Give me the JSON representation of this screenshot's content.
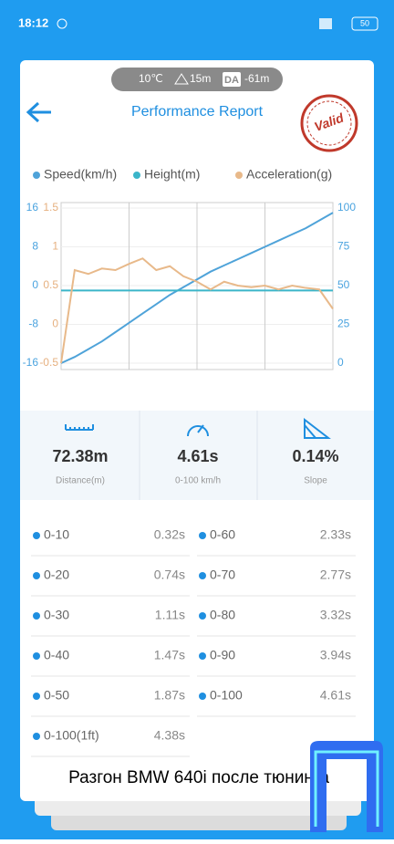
{
  "status_bar": {
    "time": "18:12",
    "battery": "50"
  },
  "conditions": {
    "temperature": "10℃",
    "altitude": "15m",
    "da_label": "DA",
    "da_value": "-61m"
  },
  "header": {
    "title": "Performance Report",
    "stamp": "Valid"
  },
  "chart_data": {
    "type": "line",
    "series": [
      {
        "name": "Speed(km/h)",
        "color": "#4fa3d9",
        "axis": "y2",
        "values": [
          0,
          4,
          9,
          14,
          20,
          26,
          32,
          38,
          44,
          49,
          54,
          59,
          63,
          67,
          71,
          75,
          79,
          83,
          87,
          92,
          97
        ]
      },
      {
        "name": "Height(m)",
        "color": "#3bb5c9",
        "axis": "y",
        "values": [
          -1,
          -1,
          -1,
          -1,
          -1,
          -1,
          -1,
          -1,
          -1,
          -1,
          -1,
          -1,
          -1,
          -1,
          -1,
          -1,
          -1,
          -1,
          -1,
          -1,
          -1
        ]
      },
      {
        "name": "Acceleration(g)",
        "color": "#e8b98a",
        "axis": "y3",
        "values": [
          -0.5,
          0.7,
          0.65,
          0.72,
          0.7,
          0.78,
          0.85,
          0.7,
          0.75,
          0.62,
          0.55,
          0.45,
          0.55,
          0.5,
          0.48,
          0.5,
          0.45,
          0.5,
          0.47,
          0.45,
          0.2
        ]
      }
    ],
    "ylim": [
      -16,
      16
    ],
    "yticks": [
      -16,
      -8,
      0,
      8,
      16
    ],
    "y2lim": [
      0,
      100
    ],
    "y2ticks": [
      0,
      25,
      50,
      75,
      100
    ],
    "y3lim": [
      -0.5,
      1.5
    ],
    "y3ticks": [
      -0.5,
      0,
      0.5,
      1,
      1.5
    ],
    "grid": true
  },
  "stats": [
    {
      "value": "72.38m",
      "label": "Distance(m)"
    },
    {
      "value": "4.61s",
      "label": "0-100 km/h"
    },
    {
      "value": "0.14%",
      "label": "Slope"
    }
  ],
  "times_left": [
    [
      "0-10",
      "0.32s"
    ],
    [
      "0-20",
      "0.74s"
    ],
    [
      "0-30",
      "1.11s"
    ],
    [
      "0-40",
      "1.47s"
    ],
    [
      "0-50",
      "1.87s"
    ],
    [
      "0-100(1ft)",
      "4.38s"
    ]
  ],
  "times_right": [
    [
      "0-60",
      "2.33s"
    ],
    [
      "0-70",
      "2.77s"
    ],
    [
      "0-80",
      "3.32s"
    ],
    [
      "0-90",
      "3.94s"
    ],
    [
      "0-100",
      "4.61s"
    ]
  ],
  "caption": "Разгон BMW 640i после тюнинга"
}
